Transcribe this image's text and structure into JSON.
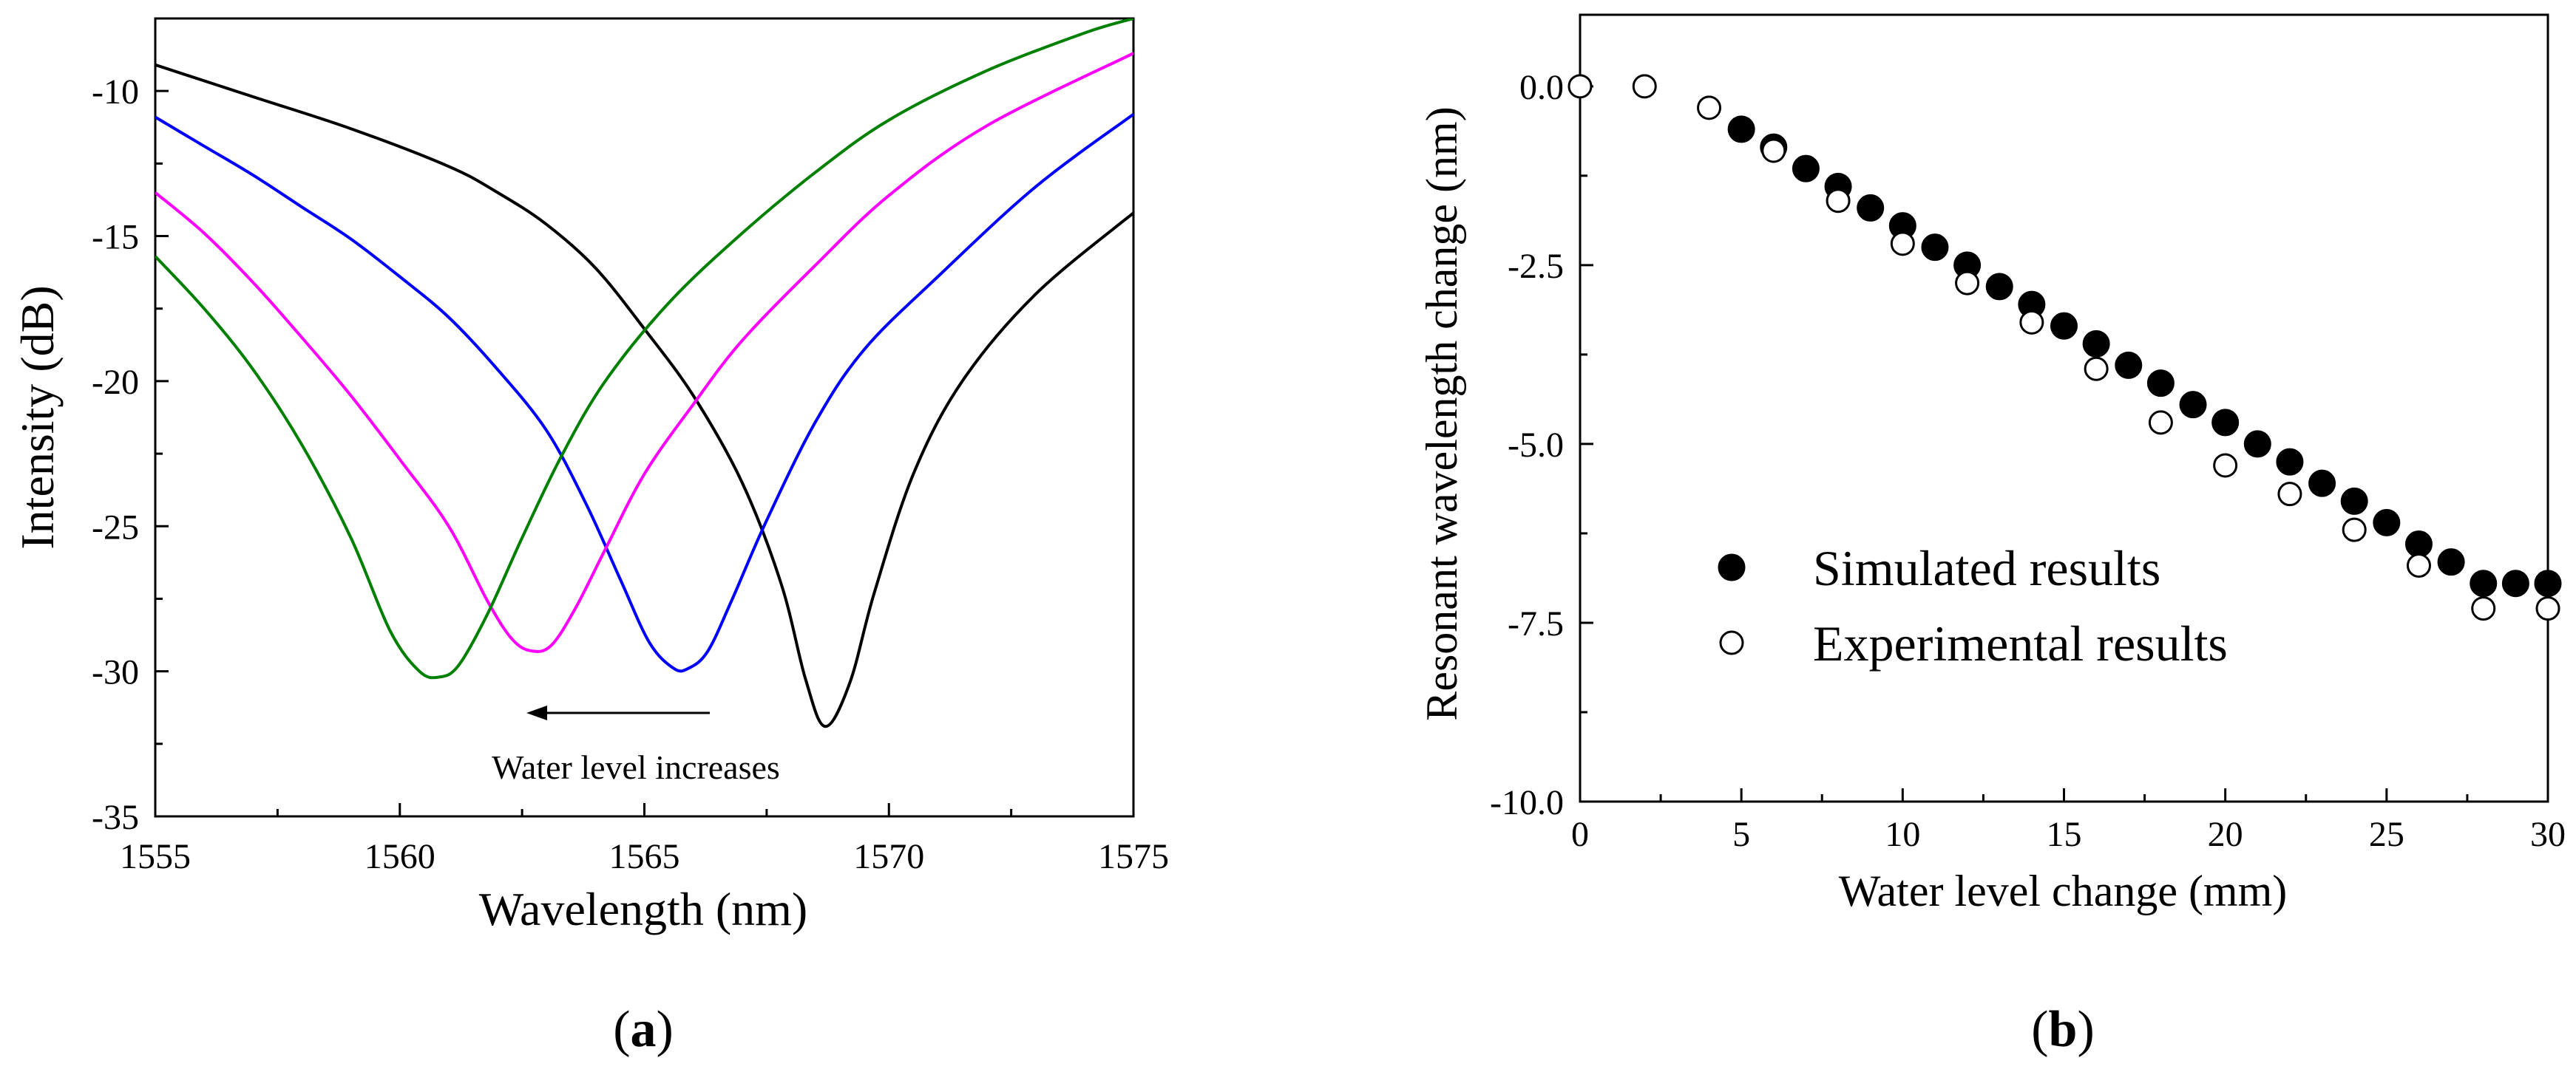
{
  "chart_data": [
    {
      "panel": "a",
      "type": "line",
      "xlabel": "Wavelength (nm)",
      "ylabel": "Intensity (dB)",
      "xlim": [
        1555,
        1575
      ],
      "ylim": [
        -35,
        -7.5
      ],
      "xticks": [
        1555,
        1560,
        1565,
        1570,
        1575
      ],
      "yticks": [
        -35,
        -30,
        -25,
        -20,
        -15,
        -10
      ],
      "annotation": "Water level increases",
      "series": [
        {
          "name": "black",
          "color": "#000000",
          "x": [
            1555,
            1557,
            1559,
            1561,
            1562,
            1563,
            1564,
            1565,
            1566,
            1567,
            1567.8,
            1568.3,
            1568.7,
            1569.2,
            1569.7,
            1570.5,
            1571.5,
            1573,
            1575
          ],
          "y": [
            -9.1,
            -10.2,
            -11.3,
            -12.6,
            -13.5,
            -14.6,
            -16.1,
            -18.2,
            -20.5,
            -23.5,
            -27,
            -30.3,
            -31.9,
            -30.4,
            -27.3,
            -23.2,
            -20,
            -17,
            -14.2
          ]
        },
        {
          "name": "blue",
          "color": "#0000ff",
          "x": [
            1555,
            1556,
            1557,
            1558,
            1559,
            1560,
            1561,
            1562,
            1563,
            1563.8,
            1564.5,
            1565.1,
            1565.6,
            1565.9,
            1566.3,
            1566.8,
            1567.5,
            1568.5,
            1569.5,
            1571,
            1573,
            1575
          ],
          "y": [
            -10.9,
            -11.9,
            -12.9,
            -14,
            -15.1,
            -16.4,
            -17.8,
            -19.6,
            -21.7,
            -24.2,
            -26.8,
            -29,
            -29.9,
            -29.9,
            -29.3,
            -27.5,
            -24.8,
            -21.4,
            -18.9,
            -16.4,
            -13.3,
            -10.8
          ]
        },
        {
          "name": "magenta",
          "color": "#ff00ff",
          "x": [
            1555,
            1556,
            1557,
            1558,
            1559,
            1560,
            1561,
            1561.8,
            1562.3,
            1562.7,
            1563.1,
            1563.6,
            1564.2,
            1565,
            1566,
            1567,
            1568.5,
            1570,
            1572,
            1575
          ],
          "y": [
            -13.5,
            -14.9,
            -16.6,
            -18.5,
            -20.5,
            -22.7,
            -25,
            -27.6,
            -28.9,
            -29.3,
            -29.1,
            -27.8,
            -25.8,
            -23.2,
            -20.8,
            -18.6,
            -16,
            -13.6,
            -11.2,
            -8.7
          ]
        },
        {
          "name": "green",
          "color": "#008000",
          "x": [
            1555,
            1556,
            1557,
            1558,
            1559,
            1559.8,
            1560.4,
            1560.8,
            1561.2,
            1561.8,
            1562.5,
            1563.3,
            1564.2,
            1565.5,
            1567,
            1568.5,
            1570,
            1572,
            1574,
            1575
          ],
          "y": [
            -15.7,
            -17.5,
            -19.6,
            -22.2,
            -25.4,
            -28.6,
            -30,
            -30.2,
            -29.8,
            -28,
            -25.4,
            -22.6,
            -20,
            -17.3,
            -14.9,
            -12.8,
            -11,
            -9.3,
            -8,
            -7.5
          ]
        }
      ]
    },
    {
      "panel": "b",
      "type": "scatter",
      "xlabel": "Water level change (mm)",
      "ylabel": "Resonant wavelength change (nm)",
      "xlim": [
        0,
        30
      ],
      "ylim": [
        -10,
        1
      ],
      "xticks": [
        0,
        5,
        10,
        15,
        20,
        25,
        30
      ],
      "yticks": [
        "0.0",
        "-2.5",
        "-5.0",
        "-7.5",
        "-10.0"
      ],
      "ytick_values": [
        0,
        -2.5,
        -5,
        -7.5,
        -10
      ],
      "legend_position": "lower-left",
      "series": [
        {
          "name": "Simulated results",
          "marker": "filled-circle",
          "x": [
            5,
            6,
            7,
            8,
            9,
            10,
            11,
            12,
            13,
            14,
            15,
            16,
            17,
            18,
            19,
            20,
            21,
            22,
            23,
            24,
            25,
            26,
            27,
            28,
            29,
            30
          ],
          "y": [
            -0.6,
            -0.85,
            -1.15,
            -1.4,
            -1.7,
            -1.95,
            -2.25,
            -2.5,
            -2.8,
            -3.05,
            -3.35,
            -3.6,
            -3.9,
            -4.15,
            -4.45,
            -4.7,
            -5.0,
            -5.25,
            -5.55,
            -5.8,
            -6.1,
            -6.4,
            -6.65,
            -6.95,
            -6.95,
            -6.95
          ]
        },
        {
          "name": "Experimental results",
          "marker": "open-circle",
          "x": [
            0,
            2,
            4,
            6,
            8,
            10,
            12,
            14,
            16,
            18,
            20,
            22,
            24,
            26,
            28,
            30
          ],
          "y": [
            0,
            0,
            -0.3,
            -0.9,
            -1.6,
            -2.2,
            -2.75,
            -3.3,
            -3.95,
            -4.7,
            -5.3,
            -5.7,
            -6.2,
            -6.7,
            -7.3,
            -7.3
          ]
        }
      ]
    }
  ],
  "panel_labels": [
    {
      "open": "(",
      "letter": "a",
      "close": ")"
    },
    {
      "open": "(",
      "letter": "b",
      "close": ")"
    }
  ]
}
